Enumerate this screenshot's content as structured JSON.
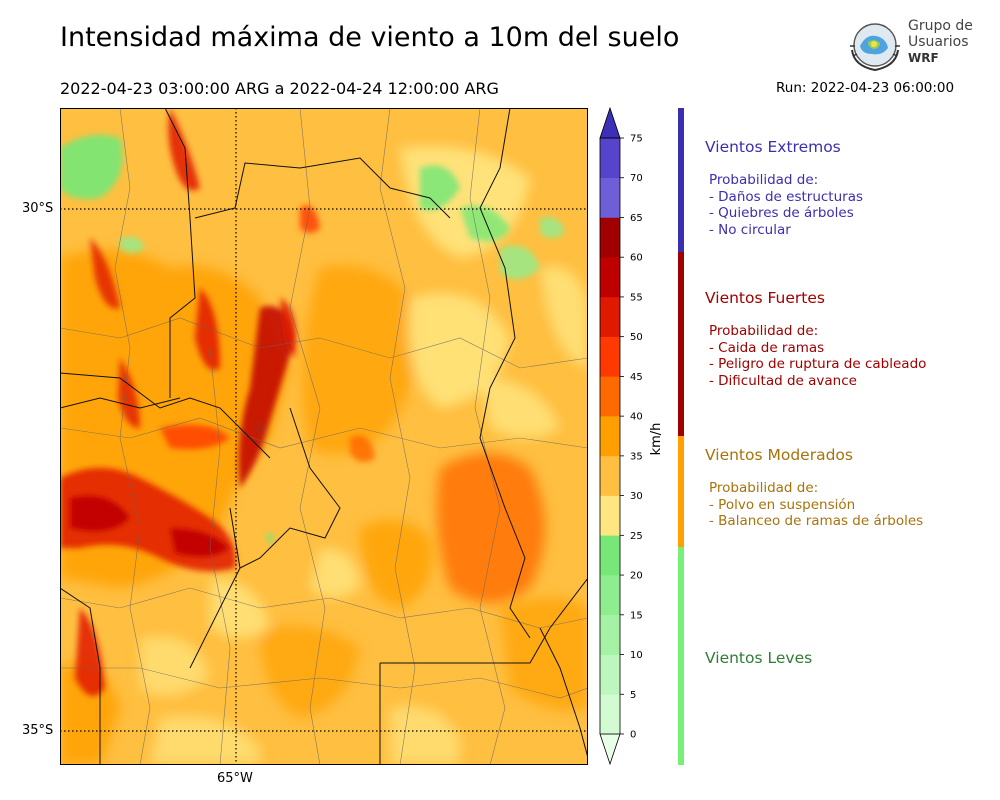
{
  "header": {
    "title": "Intensidad máxima de viento a 10m del suelo",
    "period": "2022-04-23 03:00:00 ARG  a  2022-04-24 12:00:00 ARG",
    "run": "Run: 2022-04-23 06:00:00",
    "logo_line1": "Grupo de",
    "logo_line2": "Usuarios",
    "logo_line3": "WRF"
  },
  "map": {
    "lat_labels": [
      {
        "text": "30°S",
        "lat": -30
      },
      {
        "text": "35°S",
        "lat": -35
      }
    ],
    "lon_labels": [
      {
        "text": "65°W",
        "lon": -65
      }
    ],
    "extent": {
      "lon_min": -66.7,
      "lon_max": -61.7,
      "lat_min": -35.3,
      "lat_max": -29.0
    }
  },
  "colorbar": {
    "unit": "km/h",
    "ticks": [
      "0",
      "5",
      "10",
      "15",
      "20",
      "25",
      "30",
      "35",
      "40",
      "45",
      "50",
      "55",
      "60",
      "65",
      "70",
      "75",
      "80"
    ],
    "colors": [
      "#e8ffe8",
      "#d2fbd2",
      "#bdf7bd",
      "#a5f2a5",
      "#8eed8e",
      "#77e877",
      "#ffe680",
      "#ffbf40",
      "#ffa000",
      "#ff6a00",
      "#ff3a00",
      "#e01a00",
      "#c00000",
      "#a00000",
      "#6e5fd8",
      "#5645cc",
      "#3c2fb8"
    ]
  },
  "categories": [
    {
      "title": "Vientos Extremos",
      "color": "#3a2fb0",
      "lines": [
        "Probabilidad de:",
        "- Daños de estructuras",
        "- Quiebres de árboles",
        "- No circular"
      ]
    },
    {
      "title": "Vientos Fuertes",
      "color": "#a00000",
      "lines": [
        "Probabilidad de:",
        "- Caida de ramas",
        "- Peligro de ruptura de cableado",
        "- Dificultad de avance"
      ]
    },
    {
      "title": "Vientos Moderados",
      "color": "#a8720c",
      "bar_color": "#ffa000",
      "lines": [
        "Probabilidad de:",
        "- Polvo en suspensión",
        "- Balanceo de ramas de árboles"
      ]
    },
    {
      "title": "Vientos Leves",
      "color": "#2e7d32",
      "bar_color": "#77f077",
      "lines": []
    }
  ]
}
